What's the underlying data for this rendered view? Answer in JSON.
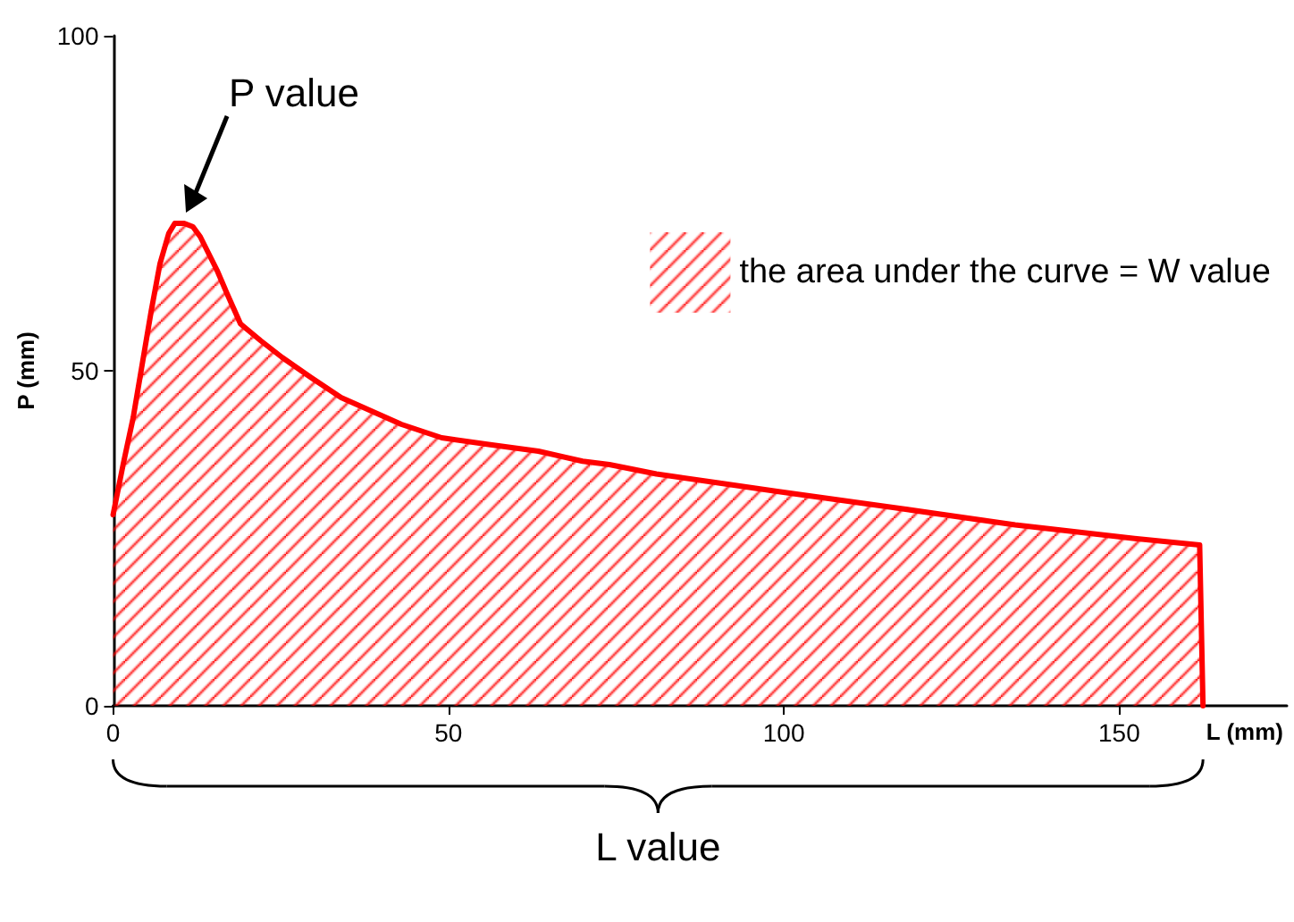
{
  "chart_data": {
    "type": "area",
    "ylabel": "P (mm)",
    "xlabel": "L (mm)",
    "annotations": [
      {
        "text": "P value",
        "x": 10.6,
        "y": 72
      },
      "L value"
    ],
    "xlim": [
      0,
      175
    ],
    "xticks": [
      0,
      50,
      100,
      150
    ],
    "ylim": [
      0,
      100
    ],
    "yticks": [
      0,
      50,
      100
    ],
    "grid": false,
    "legend": "top right",
    "marker": "none",
    "line_style": "solid",
    "series": [
      {
        "name": "the area under the curve = W value",
        "color": "#ff0000",
        "x": [
          0,
          1.5,
          3,
          5.7,
          7,
          8.3,
          9.2,
          10.6,
          11.9,
          13,
          15.5,
          17,
          19,
          22,
          25.2,
          29.5,
          34,
          38.5,
          43,
          49,
          56,
          63.4,
          70,
          74,
          81,
          90,
          99,
          117,
          134.5,
          152,
          162,
          162.5
        ],
        "values": [
          28.5,
          36,
          43,
          59,
          66,
          70.5,
          72,
          72,
          71.5,
          70,
          65,
          61.5,
          57,
          54.5,
          52,
          49,
          46,
          44,
          42,
          40,
          39,
          38,
          36.5,
          36,
          34.6,
          33.3,
          32,
          29.5,
          27,
          25,
          24,
          0
        ]
      }
    ]
  }
}
